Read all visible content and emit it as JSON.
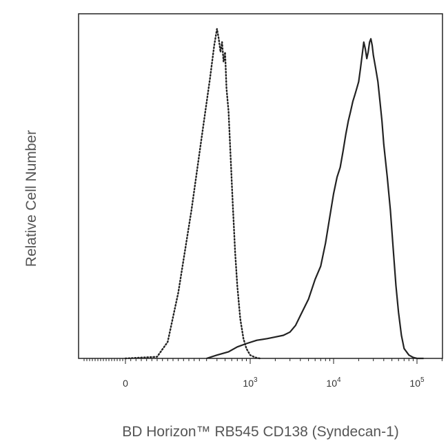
{
  "chart_data": {
    "type": "line",
    "title": "",
    "xlabel": "BD Horizon™ RB545 CD138 (Syndecan-1)",
    "ylabel": "Relative Cell Number",
    "x_scale": "biexponential",
    "xlim": [
      -150,
      200000
    ],
    "ylim": [
      0,
      100
    ],
    "grid": false,
    "legend": "none",
    "ticks": [
      {
        "value": 0,
        "base": "0",
        "exp": ""
      },
      {
        "value": 1000,
        "base": "10",
        "exp": "3"
      },
      {
        "value": 10000,
        "base": "10",
        "exp": "4"
      },
      {
        "value": 100000,
        "base": "10",
        "exp": "5"
      }
    ],
    "series": [
      {
        "style": "dotted",
        "color": "#222222",
        "x": [
          0,
          120,
          160,
          200,
          250,
          290,
          330,
          370,
          400,
          420,
          440,
          460,
          480,
          500,
          520,
          550,
          580,
          620,
          660,
          700,
          760,
          830,
          900,
          1000,
          1150,
          1300
        ],
        "y": [
          0,
          0.5,
          5,
          20,
          45,
          68,
          85,
          95,
          100,
          97,
          93,
          96,
          90,
          93,
          82,
          75,
          62,
          46,
          32,
          22,
          12,
          6,
          3,
          1,
          0.3,
          0
        ]
      },
      {
        "style": "solid",
        "color": "#222222",
        "x": [
          300,
          400,
          550,
          700,
          900,
          1200,
          1600,
          2000,
          2500,
          3000,
          3500,
          4000,
          5000,
          6000,
          7000,
          8000,
          9000,
          10000,
          11000,
          12000,
          13000,
          14000,
          15000,
          16000,
          17000,
          18000,
          19000,
          20000,
          21000,
          22000,
          23000,
          24000,
          25000,
          26000,
          27000,
          28000,
          29000,
          30000,
          32000,
          34000,
          36000,
          38000,
          40000,
          44000,
          48000,
          52000,
          56000,
          60000,
          65000,
          70000,
          80000,
          90000,
          100000,
          120000
        ],
        "y": [
          0,
          1,
          2,
          3.5,
          4.5,
          5.5,
          6,
          6.5,
          7,
          8,
          10,
          13,
          18,
          24,
          28,
          35,
          43,
          50,
          55,
          58,
          63,
          68,
          72,
          75,
          78,
          80,
          82,
          84,
          88,
          92,
          96,
          94,
          91,
          93,
          96,
          97,
          95,
          92,
          88,
          84,
          78,
          72,
          65,
          55,
          45,
          33,
          22,
          14,
          7,
          3,
          1,
          0.3,
          0,
          0
        ]
      }
    ]
  }
}
